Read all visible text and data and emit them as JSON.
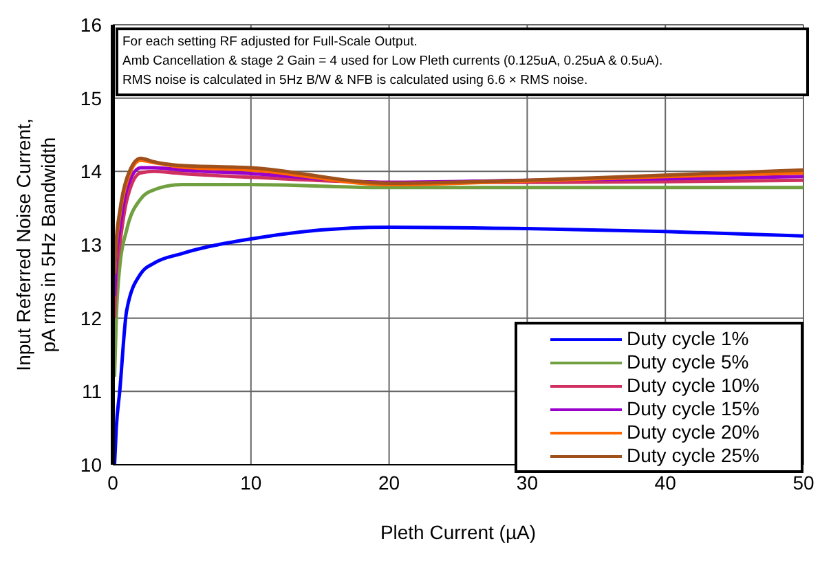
{
  "chart_data": {
    "type": "line",
    "xlabel": "Pleth Current (µA)",
    "ylabel": "Input Referred Noise Current, pA rms in 5Hz Bandwidth",
    "annotations": [
      "For each setting RF adjusted for Full-Scale Output.",
      "Amb Cancellation & stage 2 Gain = 4 used for Low Pleth currents (0.125uA, 0.25uA & 0.5uA).",
      "RMS noise is calculated in 5Hz B/W & NFB is calculated using 6.6 × RMS noise."
    ],
    "x": [
      0.125,
      0.25,
      0.5,
      1,
      2,
      3,
      5,
      10,
      20,
      30,
      40,
      50
    ],
    "series": [
      {
        "name": "Duty cycle 1%",
        "color": "#0000ff",
        "values": [
          10.0,
          10.5,
          11.0,
          12.1,
          12.6,
          12.75,
          12.88,
          13.08,
          13.24,
          13.22,
          13.18,
          13.12
        ]
      },
      {
        "name": "Duty cycle 5%",
        "color": "#70a040",
        "values": [
          11.2,
          12.0,
          12.7,
          13.2,
          13.62,
          13.75,
          13.82,
          13.82,
          13.78,
          13.78,
          13.78,
          13.78
        ]
      },
      {
        "name": "Duty cycle 10%",
        "color": "#d03060",
        "values": [
          12.0,
          12.6,
          13.0,
          13.6,
          13.98,
          14.0,
          13.97,
          13.92,
          13.85,
          13.85,
          13.86,
          13.88
        ]
      },
      {
        "name": "Duty cycle 15%",
        "color": "#9900cc",
        "values": [
          12.3,
          12.8,
          13.2,
          13.75,
          14.05,
          14.05,
          14.02,
          13.97,
          13.85,
          13.88,
          13.9,
          13.93
        ]
      },
      {
        "name": "Duty cycle 20%",
        "color": "#ff6600",
        "values": [
          12.6,
          13.0,
          13.4,
          13.85,
          14.15,
          14.12,
          14.06,
          14.02,
          13.82,
          13.87,
          13.93,
          13.98
        ]
      },
      {
        "name": "Duty cycle 25%",
        "color": "#a0501a",
        "values": [
          12.6,
          13.05,
          13.45,
          13.9,
          14.18,
          14.13,
          14.08,
          14.05,
          13.84,
          13.88,
          13.95,
          14.02
        ]
      }
    ],
    "xlim": [
      0,
      50
    ],
    "xticks": [
      0,
      10,
      20,
      30,
      40,
      50
    ],
    "ylim": [
      10,
      16
    ],
    "yticks": [
      10,
      11,
      12,
      13,
      14,
      15,
      16
    ],
    "grid": true,
    "legend": "bottom right",
    "marker": "none",
    "line_style": "solid"
  }
}
